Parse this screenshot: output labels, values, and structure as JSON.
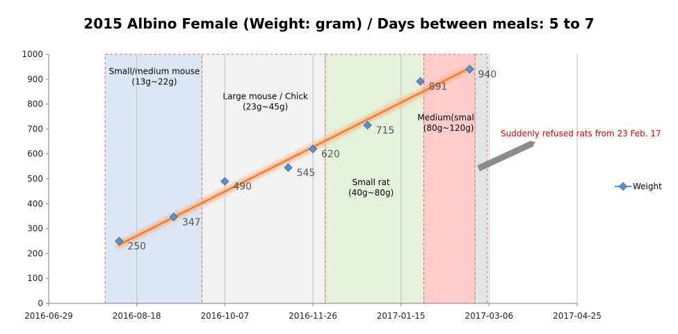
{
  "chart_data": {
    "type": "scatter",
    "title": "2015 Albino Female (Weight: gram) / Days between meals: 5 to 7",
    "xlabel": "",
    "ylabel": "",
    "x_axis": {
      "type": "date",
      "min": "2016-06-29",
      "max": "2017-04-25",
      "ticks": [
        "2016-06-29",
        "2016-08-18",
        "2016-10-07",
        "2016-11-26",
        "2017-01-15",
        "2017-03-06",
        "2017-04-25"
      ]
    },
    "y_axis": {
      "min": 0,
      "max": 1000,
      "ticks": [
        0,
        100,
        200,
        300,
        400,
        500,
        600,
        700,
        800,
        900,
        1000
      ]
    },
    "grid": {
      "vertical": true,
      "horizontal": false
    },
    "series": [
      {
        "name": "Weight",
        "marker": "diamond",
        "color": "#5b8fc7",
        "points": [
          {
            "x": "2016-08-08",
            "y": 250,
            "label": "250"
          },
          {
            "x": "2016-09-08",
            "y": 347,
            "label": "347"
          },
          {
            "x": "2016-10-07",
            "y": 490,
            "label": "490"
          },
          {
            "x": "2016-11-12",
            "y": 545,
            "label": "545"
          },
          {
            "x": "2016-11-26",
            "y": 620,
            "label": "620"
          },
          {
            "x": "2016-12-27",
            "y": 715,
            "label": "715"
          },
          {
            "x": "2017-01-26",
            "y": 891,
            "label": "891"
          },
          {
            "x": "2017-02-23",
            "y": 940,
            "label": "940"
          }
        ]
      }
    ],
    "trendline": {
      "from": {
        "x": "2016-08-08",
        "y": 235
      },
      "to": {
        "x": "2017-02-23",
        "y": 945
      },
      "color": "#ed7d31"
    },
    "bands": [
      {
        "from": "2016-07-31",
        "to": "2016-09-24",
        "color": "#dce6f4",
        "label_lines": [
          "Small/medium mouse",
          "(13g~22g)"
        ],
        "label_at": {
          "x": "2016-08-28",
          "y": 920
        }
      },
      {
        "from": "2016-09-24",
        "to": "2016-12-03",
        "color": "#f2f2f2",
        "label_lines": [
          "Large mouse / Chick",
          "(23g~45g)"
        ],
        "label_at": {
          "x": "2016-10-30",
          "y": 820
        }
      },
      {
        "from": "2016-12-03",
        "to": "2017-01-28",
        "color": "#e5f0da",
        "label_lines": [
          "Small rat",
          "(40g~80g)"
        ],
        "label_at": {
          "x": "2016-12-29",
          "y": 475
        }
      },
      {
        "from": "2017-01-28",
        "to": "2017-02-26",
        "color": "#ffcccc",
        "label_lines": [
          "Medium(small)",
          "(80g~120g)"
        ],
        "label_at": {
          "x": "2017-02-11",
          "y": 735
        }
      },
      {
        "from": "2017-02-26",
        "to": "2017-03-05",
        "color": "#e3e3e3",
        "label_lines": [],
        "label_at": null
      }
    ],
    "annotations": [
      {
        "text": "Suddenly refused rats from 23 Feb. 17",
        "color": "#e00000"
      }
    ],
    "legend": {
      "position": "right",
      "entries": [
        "Weight"
      ]
    }
  }
}
